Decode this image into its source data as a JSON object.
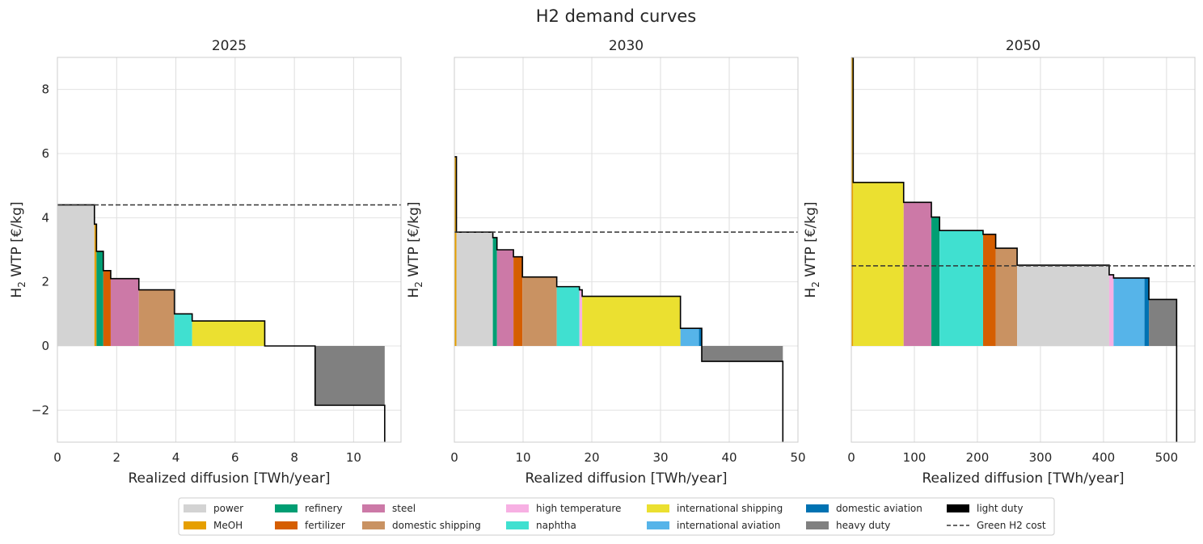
{
  "suptitle": "H2 demand curves",
  "legend": {
    "items": [
      {
        "label": "power",
        "color": "#d3d3d3",
        "kind": "patch"
      },
      {
        "label": "MeOH",
        "color": "#e69f00",
        "kind": "patch"
      },
      {
        "label": "refinery",
        "color": "#009e73",
        "kind": "patch"
      },
      {
        "label": "fertilizer",
        "color": "#d55e00",
        "kind": "patch"
      },
      {
        "label": "steel",
        "color": "#cc79a7",
        "kind": "patch"
      },
      {
        "label": "domestic shipping",
        "color": "#c99262",
        "kind": "patch"
      },
      {
        "label": "high temperature",
        "color": "#f7b0e3",
        "kind": "patch"
      },
      {
        "label": "naphtha",
        "color": "#40e0d0",
        "kind": "patch"
      },
      {
        "label": "international shipping",
        "color": "#ebe030",
        "kind": "patch"
      },
      {
        "label": "international aviation",
        "color": "#56b4e9",
        "kind": "patch"
      },
      {
        "label": "domestic aviation",
        "color": "#0072b2",
        "kind": "patch"
      },
      {
        "label": "heavy duty",
        "color": "#808080",
        "kind": "patch"
      },
      {
        "label": "light duty",
        "color": "#000000",
        "kind": "patch"
      },
      {
        "label": "Green H2 cost",
        "color": "#333333",
        "kind": "dashed-line"
      }
    ],
    "placement": "bottom-center"
  },
  "chart_data": [
    {
      "type": "step-area",
      "title": "2025",
      "xlabel": "Realized diffusion [TWh/year]",
      "ylabel_main": "H",
      "ylabel_sub": "2",
      "ylabel_rest": " WTP [€/kg]",
      "xlim": [
        0,
        11.6
      ],
      "ylim": [
        -3,
        9
      ],
      "xticks": [
        0,
        2,
        4,
        6,
        8,
        10
      ],
      "yticks": [
        -2,
        0,
        2,
        4,
        6,
        8
      ],
      "ytick_labels": [
        "−2",
        "0",
        "2",
        "4",
        "6",
        "8"
      ],
      "show_yticklabels": true,
      "green_h2_cost": 4.4,
      "curve_end": 11.05,
      "curve_end_y": -3,
      "segments": [
        {
          "sector": "power",
          "x0": 0,
          "x1": 1.25,
          "y": 4.4
        },
        {
          "sector": "MeOH",
          "x0": 1.25,
          "x1": 1.32,
          "y": 3.8
        },
        {
          "sector": "refinery",
          "x0": 1.32,
          "x1": 1.55,
          "y": 2.95
        },
        {
          "sector": "fertilizer",
          "x0": 1.55,
          "x1": 1.8,
          "y": 2.35
        },
        {
          "sector": "steel",
          "x0": 1.8,
          "x1": 2.75,
          "y": 2.1
        },
        {
          "sector": "domestic shipping",
          "x0": 2.75,
          "x1": 3.95,
          "y": 1.75
        },
        {
          "sector": "naphtha",
          "x0": 3.95,
          "x1": 4.55,
          "y": 1.0
        },
        {
          "sector": "international shipping",
          "x0": 4.55,
          "x1": 7.0,
          "y": 0.78
        },
        {
          "sector": "domestic aviation",
          "x0": 7.0,
          "x1": 8.7,
          "y": 0.0
        },
        {
          "sector": "heavy duty",
          "x0": 8.7,
          "x1": 11.05,
          "y": -1.85
        }
      ]
    },
    {
      "type": "step-area",
      "title": "2030",
      "xlabel": "Realized diffusion [TWh/year]",
      "ylabel_main": "H",
      "ylabel_sub": "2",
      "ylabel_rest": " WTP [€/kg]",
      "xlim": [
        0,
        50
      ],
      "ylim": [
        -3,
        9
      ],
      "xticks": [
        0,
        10,
        20,
        30,
        40,
        50
      ],
      "yticks": [
        -2,
        0,
        2,
        4,
        6,
        8
      ],
      "ytick_labels": [
        "−2",
        "0",
        "2",
        "4",
        "6",
        "8"
      ],
      "show_yticklabels": false,
      "green_h2_cost": 3.55,
      "curve_end": 47.8,
      "curve_end_y": -3,
      "segments": [
        {
          "sector": "MeOH",
          "x0": 0,
          "x1": 0.3,
          "y": 5.9
        },
        {
          "sector": "power",
          "x0": 0.3,
          "x1": 5.6,
          "y": 3.55
        },
        {
          "sector": "refinery",
          "x0": 5.6,
          "x1": 6.2,
          "y": 3.38
        },
        {
          "sector": "steel",
          "x0": 6.2,
          "x1": 8.6,
          "y": 3.0
        },
        {
          "sector": "fertilizer",
          "x0": 8.6,
          "x1": 9.9,
          "y": 2.78
        },
        {
          "sector": "domestic shipping",
          "x0": 9.9,
          "x1": 14.9,
          "y": 2.15
        },
        {
          "sector": "naphtha",
          "x0": 14.9,
          "x1": 18.2,
          "y": 1.85
        },
        {
          "sector": "high temperature",
          "x0": 18.2,
          "x1": 18.6,
          "y": 1.75
        },
        {
          "sector": "international shipping",
          "x0": 18.6,
          "x1": 32.9,
          "y": 1.55
        },
        {
          "sector": "international aviation",
          "x0": 32.9,
          "x1": 35.6,
          "y": 0.55
        },
        {
          "sector": "domestic aviation",
          "x0": 35.6,
          "x1": 36.0,
          "y": 0.55
        },
        {
          "sector": "heavy duty",
          "x0": 36.0,
          "x1": 47.8,
          "y": -0.48
        }
      ]
    },
    {
      "type": "step-area",
      "title": "2050",
      "xlabel": "Realized diffusion [TWh/year]",
      "ylabel_main": "H",
      "ylabel_sub": "2",
      "ylabel_rest": " WTP [€/kg]",
      "xlim": [
        0,
        545
      ],
      "ylim": [
        -3,
        9
      ],
      "xticks": [
        0,
        100,
        200,
        300,
        400,
        500
      ],
      "yticks": [
        -2,
        0,
        2,
        4,
        6,
        8
      ],
      "ytick_labels": [
        "−2",
        "0",
        "2",
        "4",
        "6",
        "8"
      ],
      "show_yticklabels": false,
      "green_h2_cost": 2.5,
      "curve_end": 516,
      "curve_end_y": -3,
      "segments": [
        {
          "sector": "MeOH",
          "x0": 0,
          "x1": 3,
          "y": 9
        },
        {
          "sector": "international shipping",
          "x0": 3,
          "x1": 83,
          "y": 5.1
        },
        {
          "sector": "steel",
          "x0": 83,
          "x1": 127,
          "y": 4.48
        },
        {
          "sector": "refinery",
          "x0": 127,
          "x1": 140,
          "y": 4.02
        },
        {
          "sector": "naphtha",
          "x0": 140,
          "x1": 209,
          "y": 3.6
        },
        {
          "sector": "fertilizer",
          "x0": 209,
          "x1": 229,
          "y": 3.48
        },
        {
          "sector": "domestic shipping",
          "x0": 229,
          "x1": 263,
          "y": 3.05
        },
        {
          "sector": "power",
          "x0": 263,
          "x1": 409,
          "y": 2.52
        },
        {
          "sector": "high temperature",
          "x0": 409,
          "x1": 416,
          "y": 2.22
        },
        {
          "sector": "international aviation",
          "x0": 416,
          "x1": 465,
          "y": 2.12
        },
        {
          "sector": "domestic aviation",
          "x0": 465,
          "x1": 472,
          "y": 2.12
        },
        {
          "sector": "heavy duty",
          "x0": 472,
          "x1": 516,
          "y": 1.45
        }
      ]
    }
  ]
}
